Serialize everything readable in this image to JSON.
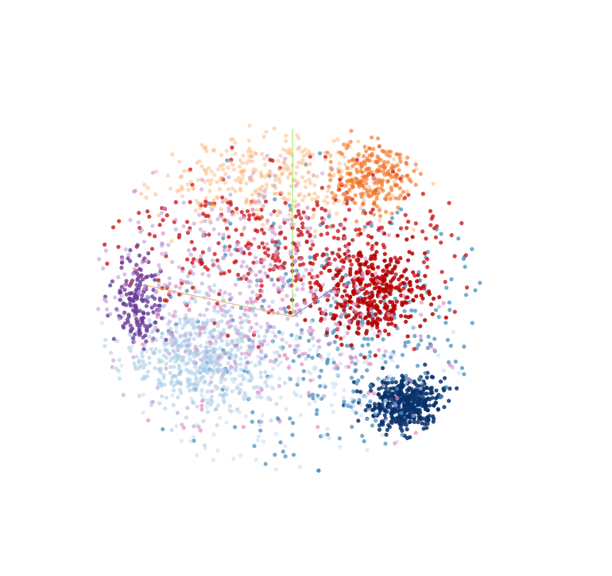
{
  "chart_data": {
    "type": "scatter",
    "dimensions": 3,
    "title": "",
    "xlabel": "",
    "ylabel": "",
    "zlabel": "",
    "grid": false,
    "legend": "none",
    "axes_visible": "origin-lines-only",
    "axis_colors": {
      "x": "#d8b060",
      "y": "#9be04a",
      "z": "#8a7ab0"
    },
    "series": [
      {
        "color": "#08306b",
        "description_color_role": "dark-blue",
        "center": [
          0.62,
          -0.55
        ],
        "spread": [
          0.1,
          0.07
        ],
        "count": 420,
        "opacity": 0.85
      },
      {
        "color": "#4a90c2",
        "center": [
          0.35,
          -0.25
        ],
        "spread": [
          0.45,
          0.35
        ],
        "count": 300,
        "opacity": 0.75
      },
      {
        "color": "#a6c8e4",
        "center": [
          -0.45,
          -0.3
        ],
        "spread": [
          0.2,
          0.14
        ],
        "count": 520,
        "opacity": 0.55
      },
      {
        "color": "#c6dbef",
        "center": [
          0.0,
          -0.45
        ],
        "spread": [
          0.45,
          0.2
        ],
        "count": 220,
        "opacity": 0.55
      },
      {
        "color": "#b30000",
        "center": [
          0.45,
          0.05
        ],
        "spread": [
          0.14,
          0.12
        ],
        "count": 380,
        "opacity": 0.85
      },
      {
        "color": "#cb181d",
        "center": [
          0.0,
          0.3
        ],
        "spread": [
          0.45,
          0.2
        ],
        "count": 360,
        "opacity": 0.8
      },
      {
        "color": "#fdae6b",
        "center": [
          -0.15,
          0.65
        ],
        "spread": [
          0.35,
          0.12
        ],
        "count": 320,
        "opacity": 0.45
      },
      {
        "color": "#f16913",
        "center": [
          0.45,
          0.68
        ],
        "spread": [
          0.1,
          0.1
        ],
        "count": 220,
        "opacity": 0.6
      },
      {
        "color": "#6a3d9a",
        "center": [
          -0.78,
          0.0
        ],
        "spread": [
          0.06,
          0.12
        ],
        "count": 160,
        "opacity": 0.8
      },
      {
        "color": "#c39bd3",
        "center": [
          -0.35,
          0.05
        ],
        "spread": [
          0.4,
          0.3
        ],
        "count": 380,
        "opacity": 0.6
      },
      {
        "color": "#e78ac3",
        "center": [
          0.05,
          -0.1
        ],
        "spread": [
          0.45,
          0.35
        ],
        "count": 120,
        "opacity": 0.7
      }
    ]
  }
}
